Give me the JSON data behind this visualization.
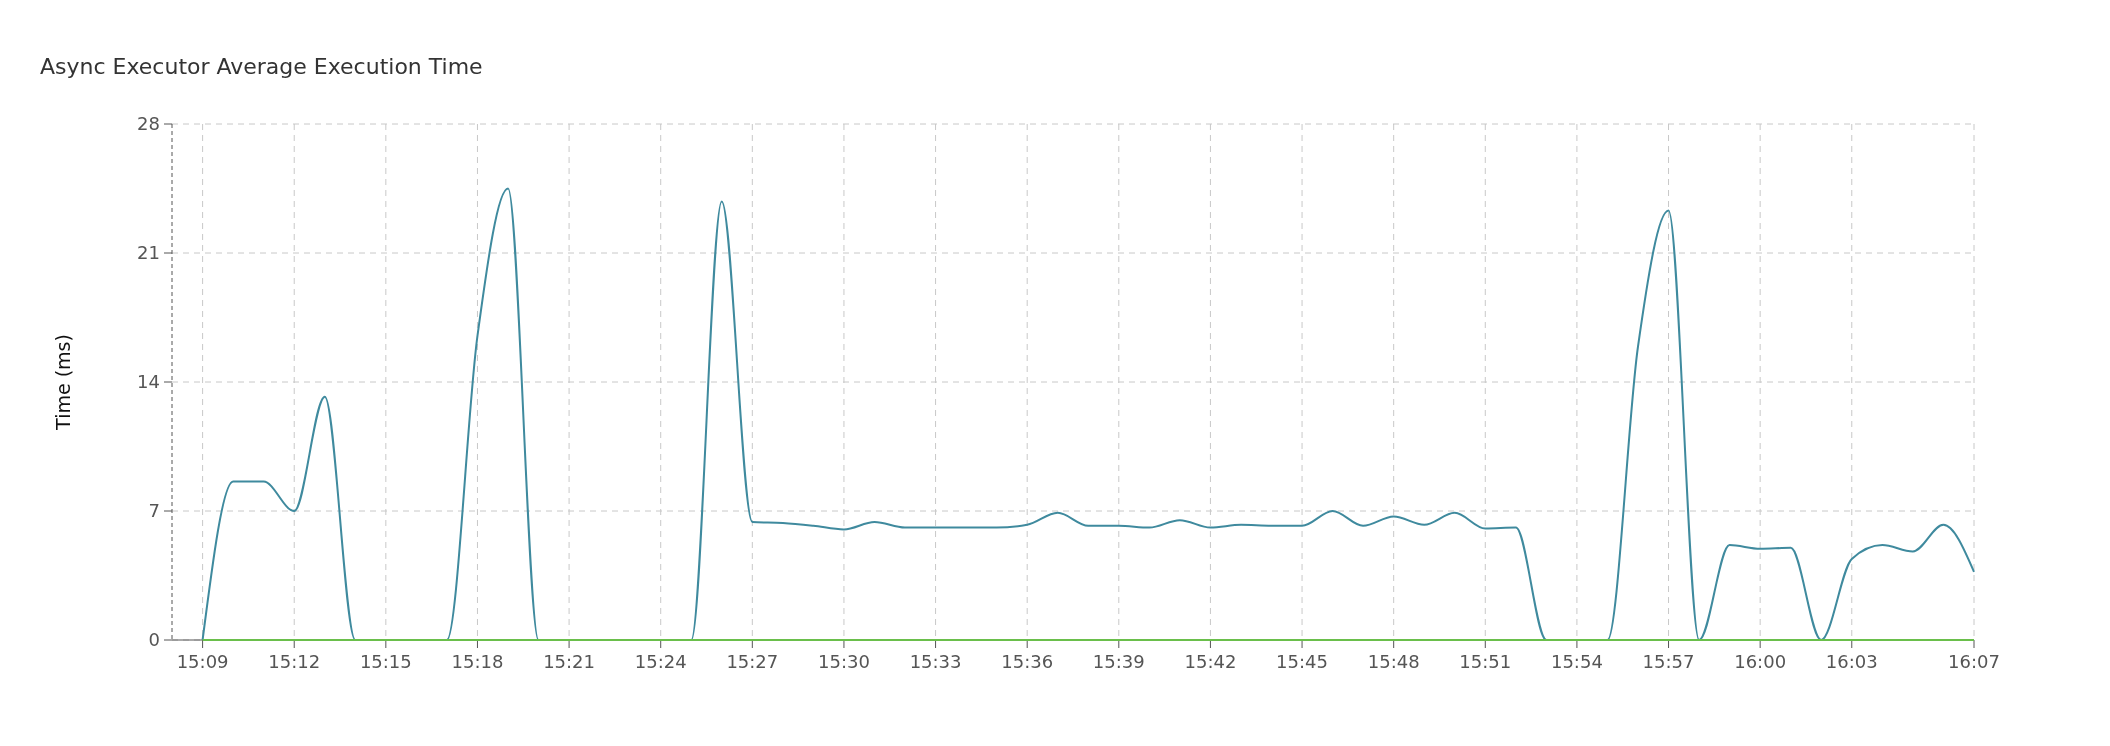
{
  "chart_data": {
    "type": "line",
    "title": "Async Executor Average Execution Time",
    "ylabel": "Time (ms)",
    "x": [
      15.15,
      15.1667,
      15.1833,
      15.2,
      15.2167,
      15.2333,
      15.25,
      15.2667,
      15.2833,
      15.3,
      15.3167,
      15.3333,
      15.35,
      15.3667,
      15.3833,
      15.4,
      15.4167,
      15.4333,
      15.45,
      15.4667,
      15.4833,
      15.5,
      15.5167,
      15.5333,
      15.55,
      15.5667,
      15.5833,
      15.6,
      15.6167,
      15.6333,
      15.65,
      15.6667,
      15.6833,
      15.7,
      15.7167,
      15.7333,
      15.75,
      15.7667,
      15.7833,
      15.8,
      15.8167,
      15.8333,
      15.85,
      15.8667,
      15.8833,
      15.9,
      15.9167,
      15.9333,
      15.95,
      15.9667,
      15.9833,
      16.0,
      16.0167,
      16.0333,
      16.05,
      16.0667,
      16.0833,
      16.1,
      16.1167
    ],
    "series": [
      {
        "color": "#3f8a9e",
        "values": [
          0,
          8.6,
          8.6,
          7.0,
          13.2,
          0,
          0,
          0,
          0,
          16.5,
          24.5,
          0,
          0,
          0,
          0,
          0,
          0,
          23.8,
          6.4,
          6.35,
          6.2,
          6.0,
          6.4,
          6.1,
          6.1,
          6.1,
          6.1,
          6.25,
          6.9,
          6.2,
          6.2,
          6.1,
          6.5,
          6.1,
          6.25,
          6.2,
          6.2,
          7.0,
          6.2,
          6.7,
          6.25,
          6.9,
          6.05,
          6.1,
          0,
          0,
          0,
          15.9,
          23.3,
          0,
          5.15,
          4.95,
          5.0,
          0,
          4.4,
          5.15,
          4.8,
          6.25,
          3.7
        ]
      },
      {
        "color": "#6abf4b",
        "values": [
          0,
          0,
          0,
          0,
          0,
          0,
          0,
          0,
          0,
          0,
          0,
          0,
          0,
          0,
          0,
          0,
          0,
          0,
          0,
          0,
          0,
          0,
          0,
          0,
          0,
          0,
          0,
          0,
          0,
          0,
          0,
          0,
          0,
          0,
          0,
          0,
          0,
          0,
          0,
          0,
          0,
          0,
          0,
          0,
          0,
          0,
          0,
          0,
          0,
          0,
          0,
          0,
          0,
          0,
          0,
          0,
          0,
          0,
          0
        ]
      }
    ],
    "xlim": [
      15.1333,
      16.1167
    ],
    "xticks": [
      {
        "value": 15.15,
        "label": "15:09"
      },
      {
        "value": 15.2,
        "label": "15:12"
      },
      {
        "value": 15.25,
        "label": "15:15"
      },
      {
        "value": 15.3,
        "label": "15:18"
      },
      {
        "value": 15.35,
        "label": "15:21"
      },
      {
        "value": 15.4,
        "label": "15:24"
      },
      {
        "value": 15.45,
        "label": "15:27"
      },
      {
        "value": 15.5,
        "label": "15:30"
      },
      {
        "value": 15.55,
        "label": "15:33"
      },
      {
        "value": 15.6,
        "label": "15:36"
      },
      {
        "value": 15.65,
        "label": "15:39"
      },
      {
        "value": 15.7,
        "label": "15:42"
      },
      {
        "value": 15.75,
        "label": "15:45"
      },
      {
        "value": 15.8,
        "label": "15:48"
      },
      {
        "value": 15.85,
        "label": "15:51"
      },
      {
        "value": 15.9,
        "label": "15:54"
      },
      {
        "value": 15.95,
        "label": "15:57"
      },
      {
        "value": 16.0,
        "label": "16:00"
      },
      {
        "value": 16.05,
        "label": "16:03"
      },
      {
        "value": 16.1167,
        "label": "16:07"
      }
    ],
    "ylim": [
      0,
      28
    ],
    "yticks": [
      0,
      7,
      14,
      21,
      28
    ],
    "grid": true
  }
}
